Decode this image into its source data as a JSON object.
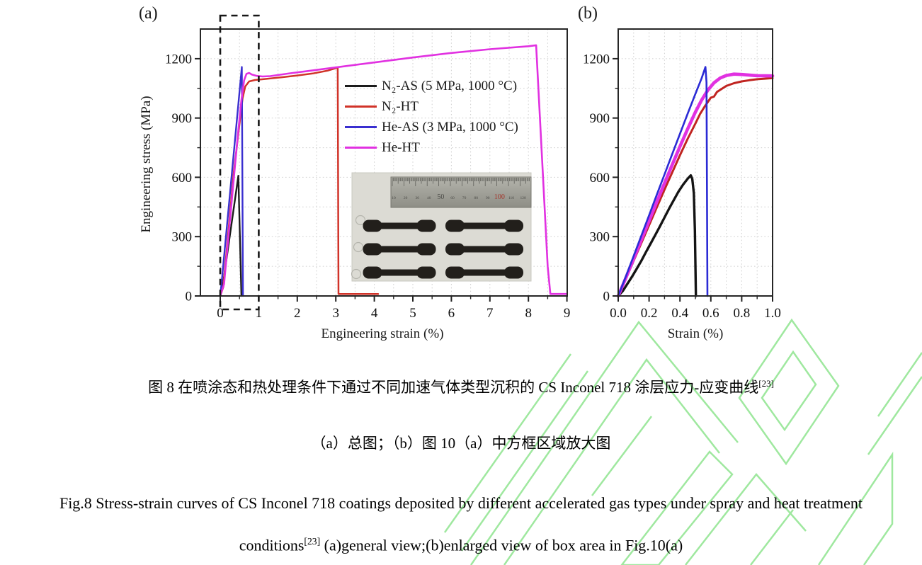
{
  "watermark": {
    "color": "#8fe48f"
  },
  "figure": {
    "panel_a": {
      "label": "(a)",
      "xlabel": "Engineering strain (%)",
      "ylabel": "Engineering stress (MPa)",
      "inset": {
        "ruler_numbers": [
          "10",
          "20",
          "30",
          "40",
          "50",
          "60",
          "70",
          "80",
          "90",
          "100",
          "110",
          "120"
        ],
        "ruler_highlight_dark": "50",
        "ruler_highlight_red": "100",
        "red_number_color": "#a5342a",
        "specimen_rows": 3,
        "specimen_cols": 2
      }
    },
    "panel_b": {
      "label": "(b)",
      "xlabel": "Strain (%)"
    },
    "legend": {
      "items": [
        {
          "key": "n2-as",
          "label": "N₂-AS (5 MPa, 1000 °C)",
          "color": "#1c1c1c"
        },
        {
          "key": "n2-ht",
          "label": "N₂-HT",
          "color": "#d13329"
        },
        {
          "key": "he-as",
          "label": "He-AS (3 MPa, 1000 °C)",
          "color": "#3a2fd0"
        },
        {
          "key": "he-ht",
          "label": "He-HT",
          "color": "#e131e1"
        }
      ]
    }
  },
  "captions": {
    "cn_line1_text": "图 8 在喷涂态和热处理条件下通过不同加速气体类型沉积的 CS Inconel 718 涂层应力-应变曲线",
    "cn_line1_sup": "[23]",
    "cn_line2": "（a）总图；（b）图 10（a）中方框区域放大图",
    "en_line1": "Fig.8 Stress-strain curves of CS Inconel 718 coatings deposited by different accelerated gas types under spray and heat treatment",
    "en_line2_word": "conditions",
    "en_line2_sup": "[23]",
    "en_line2_rest": " (a)general view;(b)enlarged view of box area in Fig.10(a)"
  },
  "chart_data": [
    {
      "type": "line",
      "panel": "a",
      "title": "general view",
      "xlabel": "Engineering strain (%)",
      "ylabel": "Engineering stress (MPa)",
      "xlim": [
        -0.5,
        9
      ],
      "ylim": [
        0,
        1350
      ],
      "x_minor": 0.5,
      "y_minor": 150,
      "grid": true,
      "x_ticks": [
        0,
        1,
        2,
        3,
        4,
        5,
        6,
        7,
        8,
        9
      ],
      "x_tick_labels": [
        "0",
        "1",
        "2",
        "3",
        "4",
        "5",
        "6",
        "7",
        "8",
        "9"
      ],
      "y_ticks": [
        0,
        300,
        600,
        900,
        1200
      ],
      "y_tick_labels": [
        "0",
        "300",
        "600",
        "900",
        "1200"
      ],
      "box": {
        "x_range": [
          0,
          1
        ]
      },
      "series": [
        {
          "key": "n2-as",
          "name": "N₂-AS (5 MPa, 1000 °C)",
          "color": "#1c1c1c",
          "width": 2.4,
          "points": [
            [
              0,
              0
            ],
            [
              0.06,
              45
            ],
            [
              0.47,
              608
            ],
            [
              0.55,
              0
            ]
          ]
        },
        {
          "key": "n2-ht",
          "name": "N₂-HT",
          "color": "#d13329",
          "width": 2.5,
          "points": [
            [
              0,
              0
            ],
            [
              0.08,
              45
            ],
            [
              0.35,
              620
            ],
            [
              0.5,
              870
            ],
            [
              0.58,
              1000
            ],
            [
              0.65,
              1060
            ],
            [
              0.75,
              1085
            ],
            [
              0.9,
              1092
            ],
            [
              1.2,
              1098
            ],
            [
              1.6,
              1106
            ],
            [
              2.0,
              1115
            ],
            [
              2.4,
              1125
            ],
            [
              2.8,
              1140
            ],
            [
              3.0,
              1152
            ],
            [
              3.05,
              1155
            ],
            [
              3.07,
              10
            ],
            [
              4.1,
              10
            ]
          ]
        },
        {
          "key": "he-as",
          "name": "He-AS (3 MPa, 1000 °C)",
          "color": "#3a2fd0",
          "width": 2.4,
          "points": [
            [
              0,
              0
            ],
            [
              0.05,
              95
            ],
            [
              0.56,
              1158
            ],
            [
              0.59,
              0
            ]
          ]
        },
        {
          "key": "he-ht",
          "name": "He-HT",
          "color": "#e131e1",
          "width": 2.6,
          "points": [
            [
              0,
              0
            ],
            [
              0.1,
              60
            ],
            [
              0.45,
              800
            ],
            [
              0.55,
              990
            ],
            [
              0.62,
              1090
            ],
            [
              0.68,
              1123
            ],
            [
              0.75,
              1128
            ],
            [
              0.82,
              1120
            ],
            [
              0.95,
              1113
            ],
            [
              1.1,
              1110
            ],
            [
              1.3,
              1112
            ],
            [
              1.8,
              1126
            ],
            [
              2.4,
              1141
            ],
            [
              3.0,
              1156
            ],
            [
              4.0,
              1181
            ],
            [
              5.0,
              1206
            ],
            [
              6.0,
              1229
            ],
            [
              7.0,
              1248
            ],
            [
              8.0,
              1263
            ],
            [
              8.2,
              1268
            ],
            [
              8.5,
              150
            ],
            [
              8.57,
              10
            ],
            [
              9.0,
              10
            ]
          ]
        }
      ]
    },
    {
      "type": "line",
      "panel": "b",
      "title": "enlarged view of box area",
      "xlabel": "Strain (%)",
      "ylabel": "",
      "xlim": [
        0,
        1.0
      ],
      "ylim": [
        0,
        1350
      ],
      "x_minor": 0.1,
      "y_minor": 150,
      "grid": true,
      "x_ticks": [
        0,
        0.2,
        0.4,
        0.6,
        0.8,
        1.0
      ],
      "x_tick_labels": [
        "0.0",
        "0.2",
        "0.4",
        "0.6",
        "0.8",
        "1.0"
      ],
      "y_ticks": [
        0,
        300,
        600,
        900,
        1200
      ],
      "y_tick_labels": [
        "0",
        "300",
        "600",
        "900",
        "1200"
      ],
      "series": [
        {
          "key": "n2-as",
          "name": "N₂-AS (5 MPa, 1000 °C)",
          "color": "#141414",
          "width": 3.4,
          "points": [
            [
              0,
              0
            ],
            [
              0.03,
              25
            ],
            [
              0.06,
              62
            ],
            [
              0.09,
              98
            ],
            [
              0.12,
              138
            ],
            [
              0.15,
              178
            ],
            [
              0.18,
              222
            ],
            [
              0.21,
              265
            ],
            [
              0.24,
              308
            ],
            [
              0.27,
              352
            ],
            [
              0.3,
              397
            ],
            [
              0.33,
              442
            ],
            [
              0.36,
              485
            ],
            [
              0.39,
              527
            ],
            [
              0.42,
              563
            ],
            [
              0.45,
              593
            ],
            [
              0.47,
              610
            ],
            [
              0.48,
              592
            ],
            [
              0.49,
              520
            ],
            [
              0.497,
              330
            ],
            [
              0.503,
              0
            ]
          ]
        },
        {
          "key": "n2-ht",
          "name": "N₂-HT",
          "color": "#c02420",
          "width": 3.0,
          "points": [
            [
              0,
              0
            ],
            [
              0.05,
              88
            ],
            [
              0.1,
              178
            ],
            [
              0.15,
              268
            ],
            [
              0.2,
              358
            ],
            [
              0.25,
              448
            ],
            [
              0.3,
              538
            ],
            [
              0.35,
              625
            ],
            [
              0.4,
              712
            ],
            [
              0.45,
              795
            ],
            [
              0.5,
              872
            ],
            [
              0.53,
              920
            ],
            [
              0.56,
              958
            ],
            [
              0.6,
              1003
            ],
            [
              0.62,
              1008
            ],
            [
              0.64,
              1032
            ],
            [
              0.7,
              1062
            ],
            [
              0.75,
              1076
            ],
            [
              0.8,
              1085
            ],
            [
              0.85,
              1091
            ],
            [
              0.9,
              1096
            ],
            [
              0.95,
              1099
            ],
            [
              1.0,
              1102
            ]
          ]
        },
        {
          "key": "he-ht",
          "name": "He-HT",
          "color": "#e131e1",
          "width": 4.6,
          "points": [
            [
              0,
              0
            ],
            [
              0.05,
              92
            ],
            [
              0.1,
              188
            ],
            [
              0.15,
              284
            ],
            [
              0.2,
              380
            ],
            [
              0.25,
              476
            ],
            [
              0.3,
              570
            ],
            [
              0.35,
              664
            ],
            [
              0.4,
              756
            ],
            [
              0.45,
              845
            ],
            [
              0.5,
              930
            ],
            [
              0.54,
              990
            ],
            [
              0.58,
              1040
            ],
            [
              0.62,
              1078
            ],
            [
              0.66,
              1102
            ],
            [
              0.7,
              1115
            ],
            [
              0.75,
              1122
            ],
            [
              0.8,
              1120
            ],
            [
              0.85,
              1117
            ],
            [
              0.9,
              1114
            ],
            [
              1.0,
              1113
            ]
          ]
        },
        {
          "key": "he-as",
          "name": "He-AS (3 MPa, 1000 °C)",
          "color": "#2b2bd5",
          "width": 2.6,
          "points": [
            [
              0,
              0
            ],
            [
              0.05,
              100
            ],
            [
              0.1,
              202
            ],
            [
              0.15,
              305
            ],
            [
              0.2,
              408
            ],
            [
              0.25,
              512
            ],
            [
              0.3,
              615
            ],
            [
              0.35,
              718
            ],
            [
              0.4,
              820
            ],
            [
              0.45,
              922
            ],
            [
              0.5,
              1022
            ],
            [
              0.54,
              1100
            ],
            [
              0.565,
              1158
            ],
            [
              0.572,
              1080
            ],
            [
              0.578,
              0
            ]
          ]
        }
      ]
    }
  ]
}
